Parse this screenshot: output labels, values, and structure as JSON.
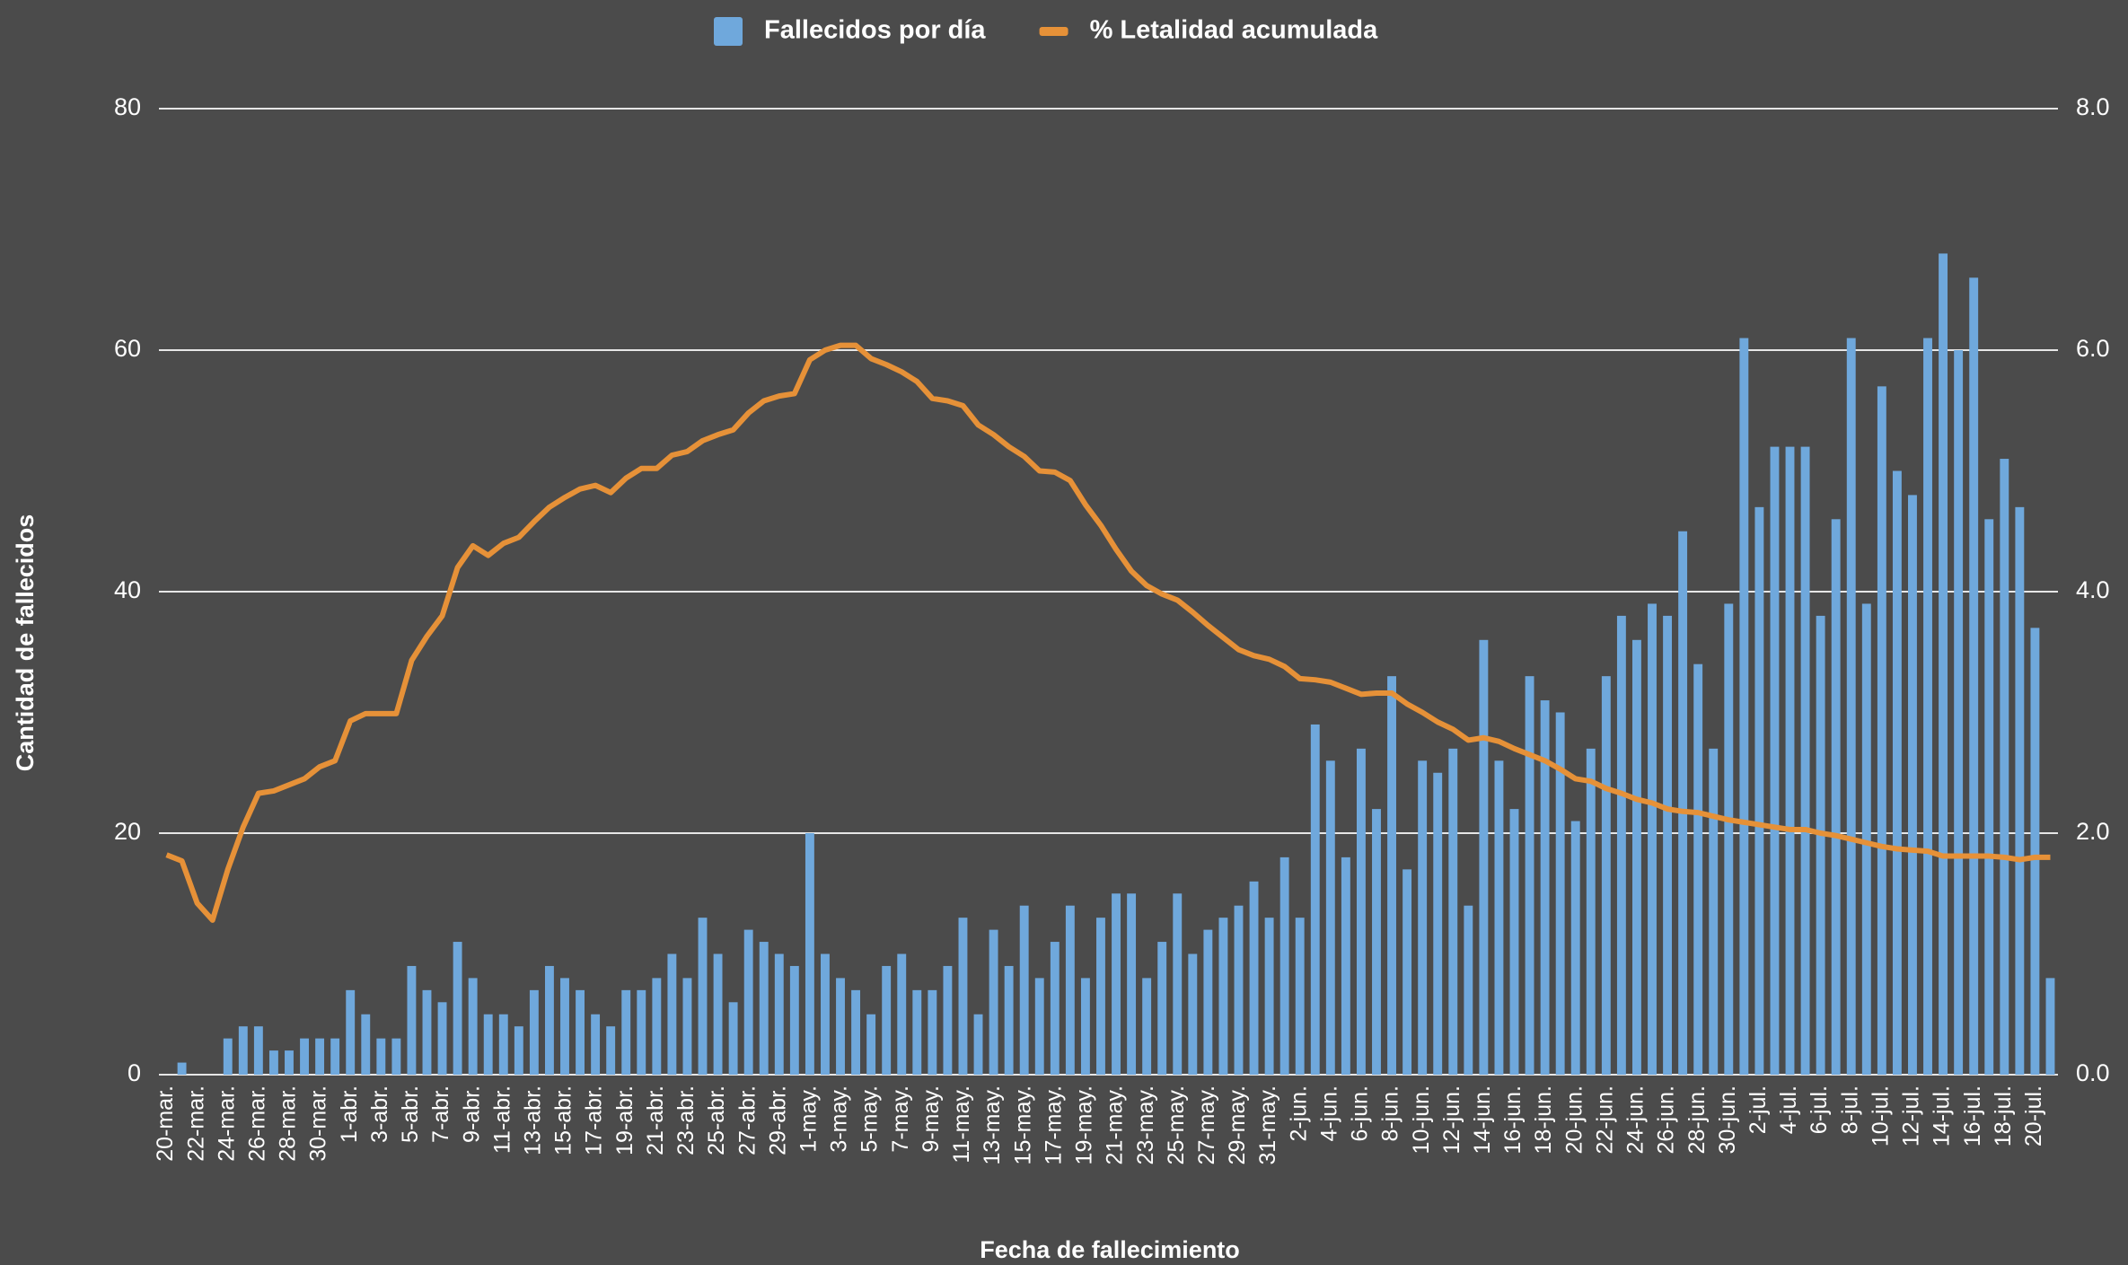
{
  "chart_data": {
    "type": "combo",
    "x_label": "Fecha de fallecimiento",
    "y_label": "Cantidad de fallecidos",
    "categories": [
      "20-mar.",
      null,
      "22-mar.",
      null,
      "24-mar.",
      null,
      "26-mar.",
      null,
      "28-mar.",
      null,
      "30-mar.",
      null,
      "1-abr.",
      null,
      "3-abr.",
      null,
      "5-abr.",
      null,
      "7-abr.",
      null,
      "9-abr.",
      null,
      "11-abr.",
      null,
      "13-abr.",
      null,
      "15-abr.",
      null,
      "17-abr.",
      null,
      "19-abr.",
      null,
      "21-abr.",
      null,
      "23-abr.",
      null,
      "25-abr.",
      null,
      "27-abr.",
      null,
      "29-abr.",
      null,
      "1-may.",
      null,
      "3-may.",
      null,
      "5-may.",
      null,
      "7-may.",
      null,
      "9-may.",
      null,
      "11-may.",
      null,
      "13-may.",
      null,
      "15-may.",
      null,
      "17-may.",
      null,
      "19-may.",
      null,
      "21-may.",
      null,
      "23-may.",
      null,
      "25-may.",
      null,
      "27-may.",
      null,
      "29-may.",
      null,
      "31-may.",
      null,
      "2-jun.",
      null,
      "4-jun.",
      null,
      "6-jun.",
      null,
      "8-jun.",
      null,
      "10-jun.",
      null,
      "12-jun.",
      null,
      "14-jun.",
      null,
      "16-jun.",
      null,
      "18-jun.",
      null,
      "20-jun.",
      null,
      "22-jun.",
      null,
      "24-jun.",
      null,
      "26-jun.",
      null,
      "28-jun.",
      null,
      "30-jun.",
      null,
      "2-jul.",
      null,
      "4-jul.",
      null,
      "6-jul.",
      null,
      "8-jul.",
      null,
      "10-jul.",
      null,
      "12-jul.",
      null,
      "14-jul.",
      null,
      "16-jul.",
      null,
      "18-jul.",
      null,
      "20-jul.",
      null
    ],
    "series": [
      {
        "name": "Fallecidos por día",
        "type": "bar",
        "color": "#6fa8dc",
        "values": [
          0,
          1,
          0,
          0,
          3,
          4,
          4,
          2,
          2,
          3,
          3,
          3,
          7,
          5,
          3,
          3,
          9,
          7,
          6,
          11,
          8,
          5,
          5,
          4,
          7,
          9,
          8,
          7,
          5,
          4,
          7,
          7,
          8,
          10,
          8,
          13,
          10,
          6,
          12,
          11,
          10,
          9,
          20,
          10,
          8,
          7,
          5,
          9,
          10,
          7,
          7,
          9,
          13,
          5,
          12,
          9,
          14,
          8,
          11,
          14,
          8,
          13,
          15,
          15,
          8,
          11,
          15,
          10,
          12,
          13,
          14,
          16,
          13,
          18,
          13,
          29,
          26,
          18,
          27,
          22,
          33,
          17,
          26,
          25,
          27,
          14,
          36,
          26,
          22,
          33,
          31,
          30,
          21,
          27,
          33,
          38,
          36,
          39,
          38,
          45,
          34,
          27,
          39,
          61,
          47,
          52,
          52,
          52,
          38,
          46,
          61,
          39,
          57,
          50,
          48,
          61,
          68,
          60,
          66,
          46,
          51,
          47,
          37,
          8
        ]
      },
      {
        "name": "% Letalidad acumulada",
        "type": "line",
        "axis": "y2",
        "color": "#e69138",
        "values": [
          1.82,
          1.77,
          1.42,
          1.28,
          1.7,
          2.05,
          2.33,
          2.35,
          2.4,
          2.45,
          2.55,
          2.6,
          2.93,
          2.99,
          2.99,
          2.99,
          3.43,
          3.63,
          3.8,
          4.2,
          4.38,
          4.3,
          4.4,
          4.45,
          4.58,
          4.7,
          4.78,
          4.85,
          4.88,
          4.82,
          4.94,
          5.02,
          5.02,
          5.13,
          5.16,
          5.25,
          5.3,
          5.34,
          5.48,
          5.58,
          5.62,
          5.64,
          5.92,
          6.0,
          6.04,
          6.04,
          5.93,
          5.88,
          5.82,
          5.74,
          5.6,
          5.58,
          5.54,
          5.38,
          5.3,
          5.2,
          5.12,
          5.0,
          4.99,
          4.92,
          4.72,
          4.55,
          4.35,
          4.17,
          4.05,
          3.98,
          3.93,
          3.83,
          3.72,
          3.62,
          3.52,
          3.47,
          3.44,
          3.38,
          3.28,
          3.27,
          3.25,
          3.2,
          3.15,
          3.16,
          3.16,
          3.07,
          3.0,
          2.92,
          2.86,
          2.77,
          2.79,
          2.76,
          2.7,
          2.65,
          2.6,
          2.53,
          2.45,
          2.43,
          2.37,
          2.33,
          2.28,
          2.25,
          2.2,
          2.18,
          2.17,
          2.14,
          2.11,
          2.09,
          2.07,
          2.05,
          2.03,
          2.03,
          2.0,
          1.98,
          1.95,
          1.92,
          1.89,
          1.87,
          1.86,
          1.85,
          1.81,
          1.81,
          1.81,
          1.81,
          1.8,
          1.78,
          1.8,
          1.8
        ]
      }
    ],
    "ylim": [
      0,
      80
    ],
    "yticks": [
      0,
      20,
      40,
      60,
      80
    ],
    "y2lim": [
      0,
      8
    ],
    "y2ticks": [
      {
        "value": 0,
        "label": "0.0"
      },
      {
        "value": 2,
        "label": "2.0"
      },
      {
        "value": 4,
        "label": "4.0"
      },
      {
        "value": 6,
        "label": "6.0"
      },
      {
        "value": 8,
        "label": "8.0"
      }
    ],
    "grid": true,
    "legend": "top"
  }
}
